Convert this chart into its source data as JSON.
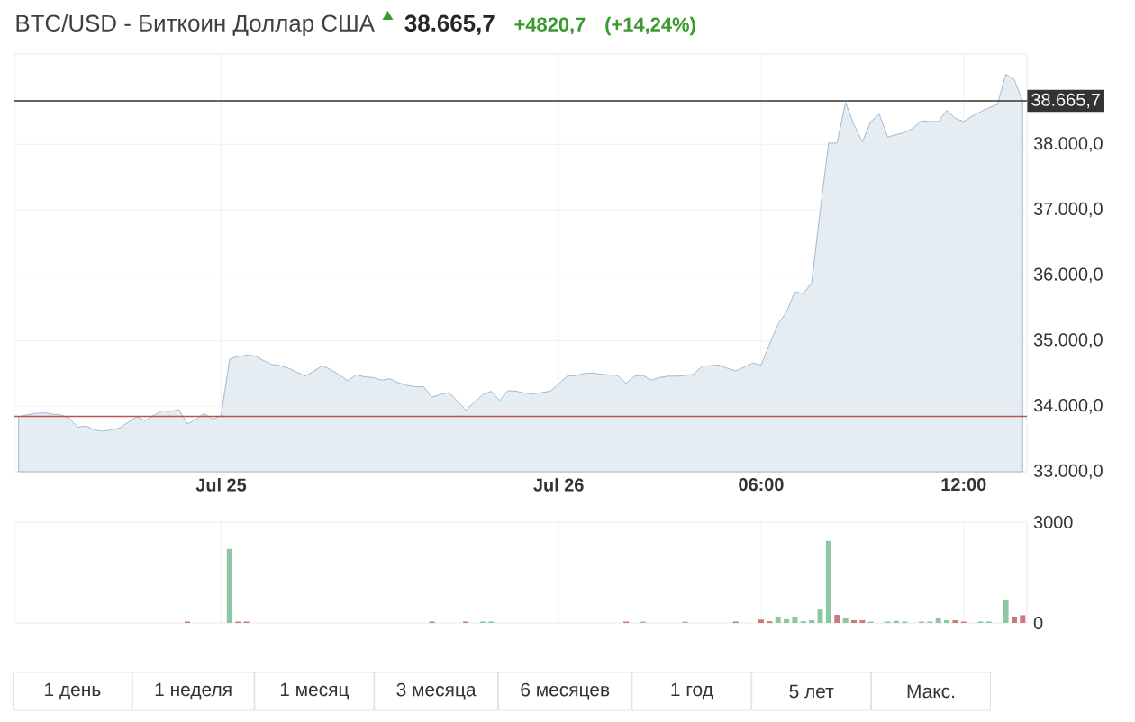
{
  "chart_data": [
    {
      "type": "area",
      "title": "BTC/USD - Биткоин Доллар США",
      "annotations": [
        "38.665,7",
        "+4820,7",
        "(+14,24%)",
        "1 день",
        "1 неделя",
        "1 месяц",
        "3 месяца",
        "6 месяцев",
        "1 год",
        "5 лет",
        "Макс."
      ],
      "color": "#8aabca",
      "categories": [
        null,
        null,
        null,
        null,
        null,
        null,
        null,
        null,
        null,
        null,
        null,
        null,
        null,
        null,
        null,
        null,
        null,
        null,
        null,
        null,
        null,
        null,
        null,
        null,
        "Jul 25",
        null,
        null,
        null,
        null,
        null,
        null,
        null,
        null,
        null,
        null,
        null,
        null,
        null,
        null,
        null,
        null,
        null,
        null,
        null,
        null,
        null,
        null,
        null,
        null,
        null,
        null,
        null,
        null,
        null,
        null,
        null,
        null,
        null,
        null,
        null,
        null,
        null,
        null,
        null,
        "Jul 26",
        null,
        null,
        null,
        null,
        null,
        null,
        null,
        null,
        null,
        null,
        null,
        null,
        null,
        null,
        null,
        null,
        null,
        null,
        null,
        null,
        null,
        null,
        null,
        "06:00",
        null,
        null,
        null,
        null,
        null,
        null,
        null,
        null,
        null,
        null,
        null,
        null,
        null,
        null,
        null,
        null,
        null,
        null,
        null,
        null,
        null,
        null,
        null,
        "12:00",
        null,
        null,
        null,
        null,
        null,
        null,
        null
      ],
      "values": [
        33840,
        33870,
        33890,
        33900,
        33880,
        33870,
        33820,
        33680,
        33700,
        33640,
        33620,
        33640,
        33670,
        33760,
        33840,
        33780,
        33860,
        33930,
        33920,
        33950,
        33730,
        33800,
        33890,
        33800,
        33860,
        34720,
        34760,
        34780,
        34770,
        34700,
        34640,
        34620,
        34580,
        34520,
        34460,
        34540,
        34620,
        34560,
        34480,
        34390,
        34480,
        34450,
        34440,
        34400,
        34420,
        34360,
        34320,
        34300,
        34300,
        34140,
        34180,
        34210,
        34080,
        33940,
        34060,
        34180,
        34230,
        34090,
        34240,
        34230,
        34200,
        34190,
        34210,
        34230,
        34340,
        34460,
        34470,
        34500,
        34510,
        34490,
        34480,
        34470,
        34350,
        34460,
        34470,
        34400,
        34440,
        34460,
        34460,
        34470,
        34490,
        34610,
        34620,
        34630,
        34580,
        34540,
        34600,
        34660,
        34630,
        34950,
        35250,
        35440,
        35750,
        35720,
        35890,
        36990,
        38020,
        38020,
        38640,
        38300,
        38040,
        38350,
        38460,
        38110,
        38150,
        38180,
        38250,
        38360,
        38350,
        38350,
        38520,
        38400,
        38350,
        38430,
        38500,
        38560,
        38610,
        39070,
        38990,
        38665.7
      ],
      "ylim": [
        33000,
        39380
      ],
      "yticks": [
        {
          "value": 33000,
          "label": "33.000,0"
        },
        {
          "value": 34000,
          "label": "34.000,0"
        },
        {
          "value": 35000,
          "label": "35.000,0"
        },
        {
          "value": 36000,
          "label": "36.000,0"
        },
        {
          "value": 37000,
          "label": "37.000,0"
        },
        {
          "value": 38000,
          "label": "38.000,0"
        }
      ],
      "ref_lines": [
        {
          "axis": "y",
          "value": 38665.7,
          "label": "38.665,7",
          "color": "#333333"
        },
        {
          "axis": "y",
          "value": 33845,
          "color": "#c0504d"
        }
      ],
      "grid": true
    },
    {
      "type": "bar",
      "categories": [
        null,
        null,
        null,
        null,
        null,
        null,
        null,
        null,
        null,
        null,
        null,
        null,
        null,
        null,
        null,
        null,
        null,
        null,
        null,
        null,
        null,
        null,
        null,
        null,
        null,
        null,
        null,
        null,
        null,
        null,
        null,
        null,
        null,
        null,
        null,
        null,
        null,
        null,
        null,
        null,
        null,
        null,
        null,
        null,
        null,
        null,
        null,
        null,
        null,
        null,
        null,
        null,
        null,
        null,
        null,
        null,
        null,
        null,
        null,
        null,
        null,
        null,
        null,
        null,
        null,
        null,
        null,
        null,
        null,
        null,
        null,
        null,
        null,
        null,
        null,
        null,
        null,
        null,
        null,
        null,
        null,
        null,
        null,
        null,
        null,
        null,
        null,
        null,
        null,
        null,
        null,
        null,
        null,
        null,
        null,
        null,
        null,
        null,
        null,
        null,
        null,
        null,
        null,
        null,
        null,
        null,
        null,
        null,
        null,
        null,
        null,
        null,
        null,
        null,
        null,
        null,
        null,
        null,
        null,
        null
      ],
      "values": [
        null,
        null,
        null,
        null,
        null,
        null,
        null,
        null,
        null,
        null,
        null,
        null,
        null,
        null,
        null,
        null,
        null,
        null,
        null,
        null,
        40,
        null,
        null,
        null,
        null,
        2200,
        40,
        40,
        null,
        null,
        null,
        null,
        null,
        null,
        null,
        null,
        null,
        null,
        null,
        null,
        null,
        null,
        null,
        null,
        null,
        null,
        null,
        null,
        null,
        40,
        null,
        null,
        null,
        40,
        null,
        40,
        40,
        null,
        null,
        null,
        null,
        null,
        null,
        null,
        null,
        null,
        null,
        null,
        null,
        null,
        null,
        null,
        40,
        null,
        40,
        null,
        null,
        null,
        null,
        40,
        null,
        null,
        null,
        null,
        null,
        40,
        null,
        null,
        100,
        50,
        190,
        110,
        190,
        50,
        80,
        400,
        2440,
        240,
        150,
        80,
        80,
        40,
        null,
        40,
        60,
        40,
        null,
        40,
        40,
        150,
        80,
        80,
        40,
        null,
        40,
        40,
        null,
        690,
        190,
        230
      ],
      "colors": [
        "#8cc7a1",
        "#8cc7a1",
        "#8cc7a1",
        "#8cc7a1",
        "#8cc7a1",
        "#8cc7a1",
        "#8cc7a1",
        "#8cc7a1",
        "#8cc7a1",
        "#8cc7a1",
        "#8cc7a1",
        "#8cc7a1",
        "#8cc7a1",
        "#8cc7a1",
        "#8cc7a1",
        "#8cc7a1",
        "#8cc7a1",
        "#8cc7a1",
        "#8cc7a1",
        "#8cc7a1",
        "#c97a78",
        "#8cc7a1",
        "#8cc7a1",
        "#8cc7a1",
        "#8cc7a1",
        "#8cc7a1",
        "#c97a78",
        "#c97a78",
        "#8cc7a1",
        "#8cc7a1",
        "#8cc7a1",
        "#8cc7a1",
        "#8cc7a1",
        "#8cc7a1",
        "#8cc7a1",
        "#8cc7a1",
        "#8cc7a1",
        "#8cc7a1",
        "#8cc7a1",
        "#8cc7a1",
        "#8cc7a1",
        "#8cc7a1",
        "#8cc7a1",
        "#8cc7a1",
        "#8cc7a1",
        "#8cc7a1",
        "#8cc7a1",
        "#8cc7a1",
        "#8cc7a1",
        "#c97a78",
        "#8cc7a1",
        "#8cc7a1",
        "#8cc7a1",
        "#c97a78",
        "#8cc7a1",
        "#8cc7a1",
        "#8cc7a1",
        "#8cc7a1",
        "#8cc7a1",
        "#8cc7a1",
        "#8cc7a1",
        "#8cc7a1",
        "#8cc7a1",
        "#8cc7a1",
        "#8cc7a1",
        "#8cc7a1",
        "#8cc7a1",
        "#8cc7a1",
        "#8cc7a1",
        "#8cc7a1",
        "#8cc7a1",
        "#8cc7a1",
        "#c97a78",
        "#8cc7a1",
        "#8cc7a1",
        "#8cc7a1",
        "#8cc7a1",
        "#8cc7a1",
        "#8cc7a1",
        "#8cc7a1",
        "#8cc7a1",
        "#8cc7a1",
        "#8cc7a1",
        "#8cc7a1",
        "#8cc7a1",
        "#c97a78",
        "#8cc7a1",
        "#8cc7a1",
        "#c97a78",
        "#c97a78",
        "#8cc7a1",
        "#8cc7a1",
        "#8cc7a1",
        "#8cc7a1",
        "#8cc7a1",
        "#8cc7a1",
        "#8cc7a1",
        "#c97a78",
        "#8cc7a1",
        "#c97a78",
        "#c97a78",
        "#8cc7a1",
        "#8cc7a1",
        "#8cc7a1",
        "#8cc7a1",
        "#8cc7a1",
        "#8cc7a1",
        "#8cc7a1",
        "#8cc7a1",
        "#8cc7a1",
        "#8cc7a1",
        "#c97a78",
        "#c97a78",
        "#8cc7a1",
        "#8cc7a1",
        "#8cc7a1",
        "#8cc7a1",
        "#8cc7a1",
        "#c97a78",
        "#c97a78"
      ],
      "ylim": [
        0,
        3000
      ],
      "yticks": [
        0,
        3000
      ],
      "tick_labels": "y",
      "grid": "x"
    }
  ]
}
